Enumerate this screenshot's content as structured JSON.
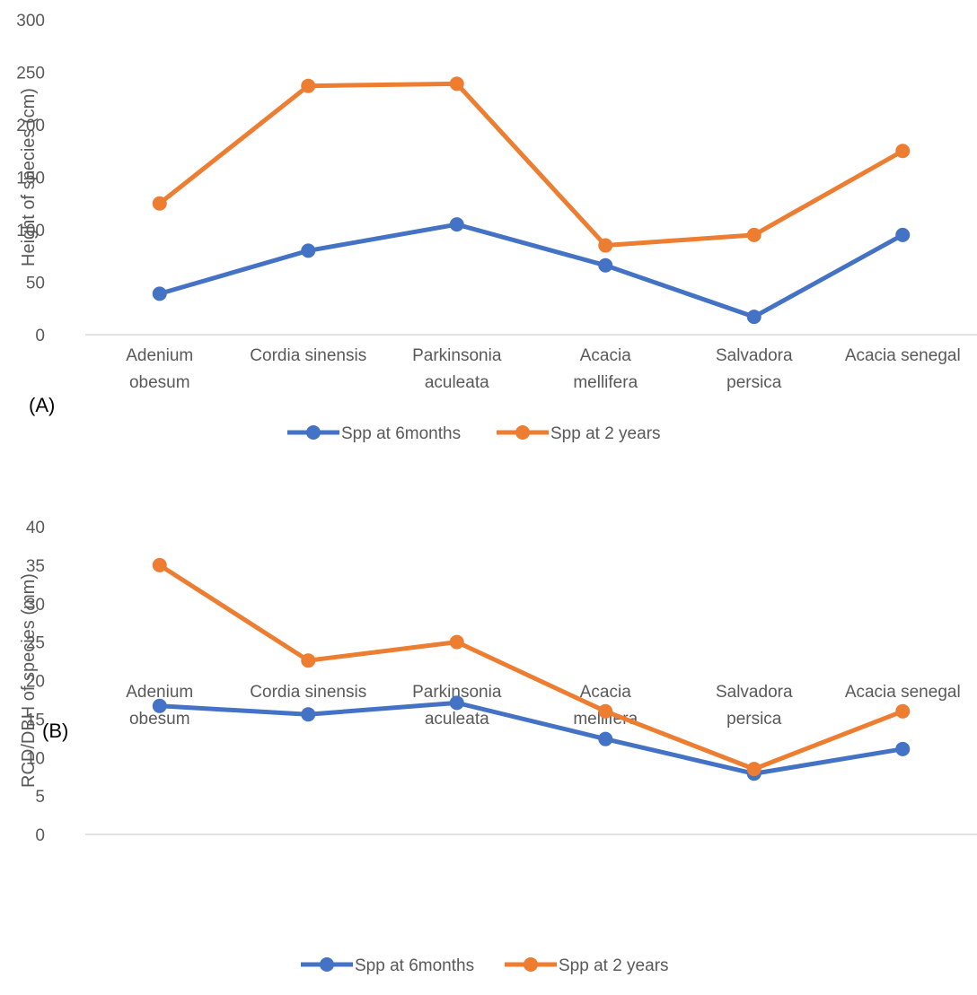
{
  "colors": {
    "series1": "#4472C4",
    "series2": "#ED7D31",
    "axis": "#D9D9D9",
    "text": "#595959"
  },
  "chart_data": [
    {
      "type": "line",
      "panel_label": "(A)",
      "ylabel": "Height of species (cm)",
      "ylim": [
        0,
        300
      ],
      "yticks": [
        "0",
        "50",
        "100",
        "150",
        "200",
        "250",
        "300"
      ],
      "categories": [
        [
          "Adenium",
          "obesum"
        ],
        [
          "Cordia sinensis"
        ],
        [
          "Parkinsonia",
          "aculeata"
        ],
        [
          "Acacia",
          "mellifera"
        ],
        [
          "Salvadora",
          "persica"
        ],
        [
          "Acacia senegal"
        ]
      ],
      "series": [
        {
          "name": "Spp at 6months",
          "values": [
            39,
            80,
            105,
            66,
            17,
            95
          ]
        },
        {
          "name": "Spp at 2 years",
          "values": [
            125,
            237,
            239,
            85,
            95,
            175
          ]
        }
      ],
      "legend": "bottom"
    },
    {
      "type": "line",
      "panel_label": "(B)",
      "ylabel": "RCD/DBH of species (mm)",
      "ylim": [
        0,
        40
      ],
      "yticks": [
        "0",
        "5",
        "10",
        "15",
        "20",
        "25",
        "30",
        "35",
        "40"
      ],
      "categories": [
        [
          "Adenium",
          "obesum"
        ],
        [
          "Cordia sinensis"
        ],
        [
          "Parkinsonia",
          "aculeata"
        ],
        [
          "Acacia",
          "mellifera"
        ],
        [
          "Salvadora",
          "persica"
        ],
        [
          "Acacia senegal"
        ]
      ],
      "series": [
        {
          "name": "Spp at 6months",
          "values": [
            16.7,
            15.6,
            17.1,
            12.4,
            7.9,
            11.1
          ]
        },
        {
          "name": "Spp at 2 years",
          "values": [
            35,
            22.6,
            25,
            16,
            8.5,
            16
          ]
        }
      ],
      "legend": "bottom"
    }
  ]
}
